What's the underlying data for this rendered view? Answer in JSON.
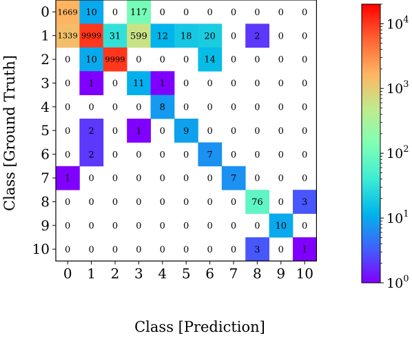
{
  "chart_data": {
    "type": "heatmap",
    "xlabel": "Class [Prediction]",
    "ylabel": "Class [Ground Truth]",
    "x_categories": [
      "0",
      "1",
      "2",
      "3",
      "4",
      "5",
      "6",
      "7",
      "8",
      "9",
      "10"
    ],
    "y_categories": [
      "0",
      "1",
      "2",
      "3",
      "4",
      "5",
      "6",
      "7",
      "8",
      "9",
      "10"
    ],
    "values": [
      [
        1669,
        10,
        0,
        117,
        0,
        0,
        0,
        0,
        0,
        0,
        0
      ],
      [
        1339,
        9999,
        31,
        599,
        12,
        18,
        20,
        0,
        2,
        0,
        0
      ],
      [
        0,
        10,
        9999,
        0,
        0,
        0,
        14,
        0,
        0,
        0,
        0
      ],
      [
        0,
        1,
        0,
        11,
        1,
        0,
        0,
        0,
        0,
        0,
        0
      ],
      [
        0,
        0,
        0,
        0,
        8,
        0,
        0,
        0,
        0,
        0,
        0
      ],
      [
        0,
        2,
        0,
        1,
        0,
        9,
        0,
        0,
        0,
        0,
        0
      ],
      [
        0,
        2,
        0,
        0,
        0,
        0,
        7,
        0,
        0,
        0,
        0
      ],
      [
        1,
        0,
        0,
        0,
        0,
        0,
        0,
        7,
        0,
        0,
        0
      ],
      [
        0,
        0,
        0,
        0,
        0,
        0,
        0,
        0,
        76,
        0,
        3
      ],
      [
        0,
        0,
        0,
        0,
        0,
        0,
        0,
        0,
        0,
        10,
        0
      ],
      [
        0,
        0,
        0,
        0,
        0,
        0,
        0,
        0,
        3,
        0,
        1
      ]
    ],
    "zero_cells": "white",
    "colorbar": {
      "colormap": "rainbow",
      "scale": "log",
      "range": [
        1,
        20000
      ],
      "ticks": [
        {
          "value": 1,
          "base": "10",
          "exp": "0"
        },
        {
          "value": 10,
          "base": "10",
          "exp": "1"
        },
        {
          "value": 100,
          "base": "10",
          "exp": "2"
        },
        {
          "value": 1000,
          "base": "10",
          "exp": "3"
        },
        {
          "value": 10000,
          "base": "10",
          "exp": "4"
        }
      ]
    }
  }
}
